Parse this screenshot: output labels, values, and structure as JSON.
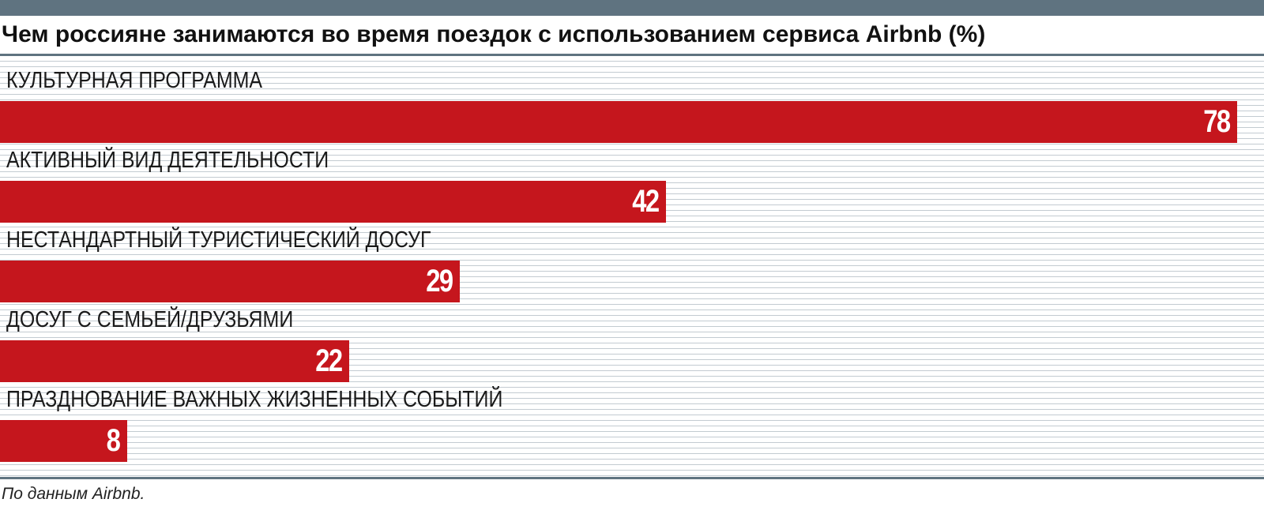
{
  "chart_data": {
    "type": "bar",
    "orientation": "horizontal",
    "title": "Чем россияне занимаются во время поездок с использованием сервиса Airbnb (%)",
    "categories": [
      "КУЛЬТУРНАЯ ПРОГРАММА",
      "АКТИВНЫЙ ВИД ДЕЯТЕЛЬНОСТИ",
      "НЕСТАНДАРТНЫЙ ТУРИСТИЧЕСКИЙ ДОСУГ",
      "ДОСУГ С СЕМЬЕЙ/ДРУЗЬЯМИ",
      "ПРАЗДНОВАНИЕ ВАЖНЫХ ЖИЗНЕННЫХ СОБЫТИЙ"
    ],
    "values": [
      78,
      42,
      29,
      22,
      8
    ],
    "value_labels": [
      "78",
      "42",
      "29",
      "22",
      "8"
    ],
    "xlim": [
      0,
      78
    ],
    "grid": true,
    "legend": "none",
    "bar_color": "#c5161d",
    "source": "По данным Airbnb."
  }
}
